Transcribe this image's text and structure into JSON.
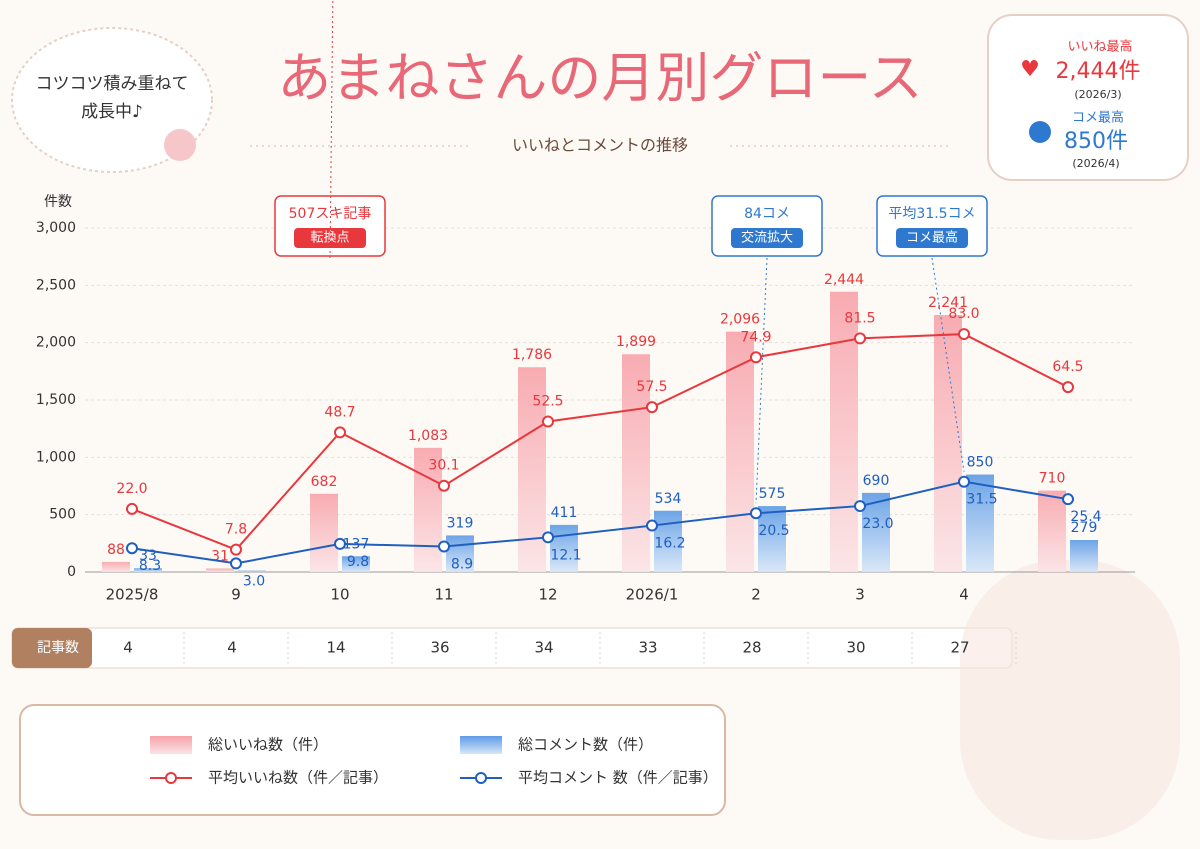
{
  "tagline": [
    "コツコツ積み重ねて",
    "成長中♪"
  ],
  "highlights": [
    {
      "label": "いいね最高",
      "value": "2,444件",
      "date": "(2026/3)"
    },
    {
      "label": "コメ最高",
      "value": "850件",
      "date": "(2026/4)"
    }
  ],
  "chart_data": {
    "type": "bar",
    "title": "あまねさんの月別グロース",
    "subtitle": "いいねとコメントの推移",
    "y_label": "件数",
    "categories": [
      "2025/8",
      "9",
      "10",
      "11",
      "12",
      "2026/1",
      "2",
      "3",
      "4",
      null
    ],
    "series": [
      {
        "name": "総いいね数（件）",
        "type": "bar",
        "color": "#f28b94",
        "values": [
          88,
          31,
          682,
          1083,
          1786,
          1899,
          2096,
          2444,
          2241,
          710
        ],
        "value_labels": [
          "88",
          "31",
          "682",
          "1,083",
          "1,786",
          "1,899",
          "2,096",
          "2,444",
          "2,241",
          "710"
        ]
      },
      {
        "name": "総コメント数（件）",
        "type": "bar",
        "color": "#4a8ee0",
        "values": [
          33,
          12,
          137,
          319,
          411,
          534,
          575,
          690,
          850,
          279
        ],
        "value_labels": [
          "33",
          null,
          "137",
          "319",
          "411",
          "534",
          "575",
          "690",
          "850",
          "279"
        ]
      },
      {
        "name": "平均いいね数（件／記事）",
        "type": "line",
        "axis": "y2",
        "color": "#e8383d",
        "values": [
          22.0,
          7.8,
          48.7,
          30.1,
          52.5,
          57.5,
          74.9,
          81.5,
          83.0,
          64.5
        ],
        "value_labels": [
          "22.0",
          "7.8",
          "48.7",
          "30.1",
          "52.5",
          "57.5",
          "74.9",
          "81.5",
          "83.0",
          "64.5"
        ]
      },
      {
        "name": "平均コメント 数（件／記事）",
        "type": "line",
        "axis": "y2",
        "color": "#1f5fbf",
        "values": [
          8.3,
          3.0,
          9.8,
          8.9,
          12.1,
          16.2,
          20.5,
          23.0,
          31.5,
          25.4
        ],
        "value_labels": [
          "8.3",
          "3.0",
          "9.8",
          "8.9",
          "12.1",
          "16.2",
          "20.5",
          "23.0",
          "31.5",
          "25.4"
        ]
      }
    ],
    "ylim": [
      0,
      3000
    ],
    "yticks": [
      0,
      500,
      {
        "value": 1000,
        "label": "1,000"
      },
      {
        "value": 1500,
        "label": "1,500"
      },
      {
        "value": 2000,
        "label": "2,000"
      },
      {
        "value": 2500,
        "label": "2,500"
      },
      {
        "value": 3000,
        "label": "3,000"
      }
    ],
    "y2lim": [
      0,
      120
    ],
    "grid": true,
    "legend": "bottom",
    "annotations": [
      {
        "text": "507スキ記事",
        "tag": "転換点",
        "color": "#e8383d"
      },
      {
        "text": "84コメ",
        "tag": "交流拡大",
        "color": "#2f78d0"
      },
      {
        "text": "平均31.5コメ",
        "tag": "コメ最高",
        "color": "#2f78d0"
      }
    ],
    "article_counts": {
      "label": "記事数",
      "values": [
        4,
        4,
        14,
        36,
        34,
        33,
        28,
        30,
        27,
        null
      ]
    }
  }
}
